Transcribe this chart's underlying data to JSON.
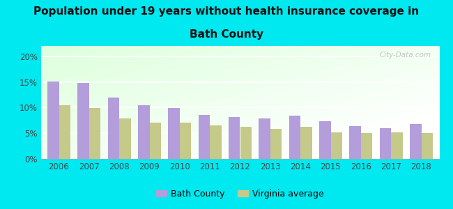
{
  "title_line1": "Population under 19 years without health insurance coverage in",
  "title_line2": "Bath County",
  "years": [
    2006,
    2007,
    2008,
    2009,
    2010,
    2011,
    2012,
    2013,
    2014,
    2015,
    2016,
    2017,
    2018
  ],
  "bath_county": [
    15.1,
    14.8,
    12.0,
    10.4,
    9.9,
    8.5,
    8.1,
    7.9,
    8.4,
    7.4,
    6.4,
    6.0,
    6.8
  ],
  "virginia_avg": [
    10.4,
    9.9,
    7.9,
    7.1,
    7.1,
    6.5,
    6.2,
    5.9,
    6.2,
    5.1,
    5.0,
    5.1,
    5.0
  ],
  "bar_color_bath": "#b39ddb",
  "bar_color_va": "#c5c98a",
  "background_outer": "#00e8f0",
  "ylim": [
    0,
    22
  ],
  "yticks": [
    0,
    5,
    10,
    15,
    20
  ],
  "ytick_labels": [
    "0%",
    "5%",
    "10%",
    "15%",
    "20%"
  ],
  "legend_bath": "Bath County",
  "legend_va": "Virginia average",
  "watermark": "City-Data.com",
  "title_fontsize": 11,
  "bar_width": 0.38
}
